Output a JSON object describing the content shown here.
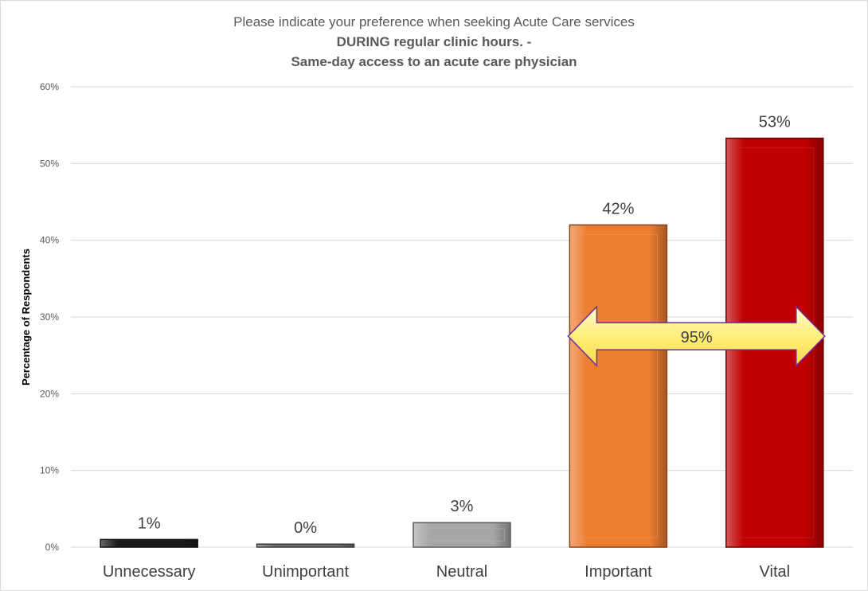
{
  "chart_data": {
    "type": "bar",
    "title_lines": [
      "Please indicate your preference when seeking Acute Care services",
      "DURING regular clinic hours. -",
      "Same-day access to an acute care physician"
    ],
    "xlabel": "",
    "ylabel": "Percentage of Respondents",
    "ylim": [
      0,
      60
    ],
    "yticks": [
      0,
      10,
      20,
      30,
      40,
      50,
      60
    ],
    "ytick_labels": [
      "0%",
      "10%",
      "20%",
      "30%",
      "40%",
      "50%",
      "60%"
    ],
    "grid": true,
    "categories": [
      "Unnecessary",
      "Unimportant",
      "Neutral",
      "Important",
      "Vital"
    ],
    "values": [
      1,
      0.4,
      3.2,
      42,
      53.3
    ],
    "data_labels": [
      "1%",
      "0%",
      "3%",
      "42%",
      "53%"
    ],
    "colors": [
      "#1a1a1a",
      "#6e6e6e",
      "#a6a6a6",
      "#ed7d31",
      "#c00000"
    ],
    "annotation": {
      "text": "95%",
      "from_category": "Important",
      "to_category": "Vital",
      "y_value": 27.5,
      "color": "#fff27a",
      "outline": "#7030a0"
    }
  }
}
